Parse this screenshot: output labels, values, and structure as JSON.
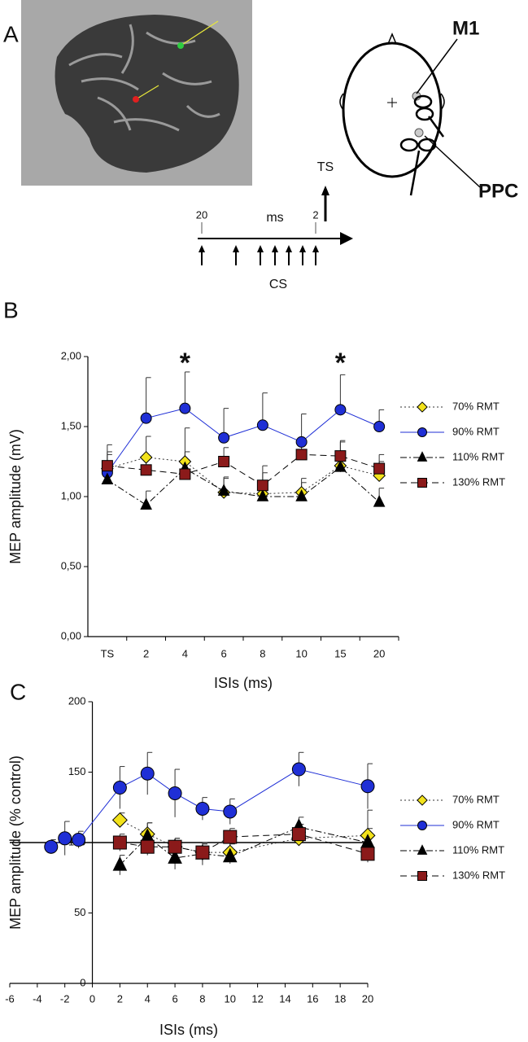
{
  "panel_labels": [
    "A",
    "B",
    "C"
  ],
  "schematic": {
    "m1": "M1",
    "ppc": "PPC",
    "ts": "TS",
    "cs": "CS",
    "ms": "ms",
    "tick_first": "20",
    "tick_last": "2"
  },
  "chart_data": [
    {
      "type": "line",
      "xlabel": "ISIs (ms)",
      "ylabel": "MEP amplitude (mV)",
      "categories": [
        "TS",
        "2",
        "4",
        "6",
        "8",
        "10",
        "15",
        "20"
      ],
      "ylim": [
        0,
        2
      ],
      "yticks": [
        {
          "value": 0,
          "label": "0,00"
        },
        {
          "value": 0.5,
          "label": "0,50"
        },
        {
          "value": 1,
          "label": "1,00"
        },
        {
          "value": 1.5,
          "label": "1,50"
        },
        {
          "value": 2,
          "label": "2,00"
        }
      ],
      "error_bars": "up",
      "annotations": [
        {
          "text": "*",
          "category": "4"
        },
        {
          "text": "*",
          "category": "15"
        }
      ],
      "series": [
        {
          "name": "70% RMT",
          "color": "#f2e21b",
          "line_color": "#333333",
          "marker": "diamond",
          "line_style": "dotted",
          "values": [
            1.2,
            1.28,
            1.25,
            1.03,
            1.02,
            1.03,
            1.22,
            1.15
          ],
          "errors": [
            0.1,
            0.15,
            0.24,
            0.1,
            0.15,
            0.1,
            0.18,
            0.1
          ]
        },
        {
          "name": "90% RMT",
          "color": "#1f2fd6",
          "line_color": "#1f2fd6",
          "marker": "circle",
          "line_style": "solid",
          "values": [
            1.17,
            1.56,
            1.63,
            1.42,
            1.51,
            1.39,
            1.62,
            1.5
          ],
          "errors": [
            0.15,
            0.29,
            0.26,
            0.21,
            0.23,
            0.2,
            0.25,
            0.12
          ]
        },
        {
          "name": "110% RMT",
          "color": "#000000",
          "line_color": "#000000",
          "marker": "triangle",
          "line_style": "dashdot",
          "values": [
            1.12,
            0.94,
            1.2,
            1.04,
            1.0,
            1.0,
            1.21,
            0.96
          ],
          "errors": [
            0.1,
            0.1,
            0.12,
            0.1,
            0.1,
            0.1,
            0.1,
            0.1
          ]
        },
        {
          "name": "130% RMT",
          "color": "#8b1a1a",
          "line_color": "#000000",
          "marker": "square",
          "line_style": "dashed",
          "values": [
            1.22,
            1.19,
            1.16,
            1.25,
            1.08,
            1.3,
            1.29,
            1.2
          ],
          "errors": [
            0.15,
            0.1,
            0.1,
            0.1,
            0.14,
            0.1,
            0.1,
            0.1
          ]
        }
      ]
    },
    {
      "type": "line",
      "xlabel": "ISIs (ms)",
      "ylabel": "MEP amplitude (% control)",
      "xlim": [
        -6,
        20
      ],
      "xticks": [
        -6,
        -4,
        -2,
        0,
        2,
        4,
        6,
        8,
        10,
        12,
        14,
        16,
        18,
        20
      ],
      "ylim": [
        0,
        200
      ],
      "yticks": [
        0,
        50,
        100,
        150,
        200
      ],
      "reference_line": 100,
      "error_bars": "both",
      "series": [
        {
          "name": "70% RMT",
          "color": "#f2e21b",
          "line_color": "#333333",
          "marker": "diamond",
          "line_style": "dotted",
          "x": [
            2,
            4,
            6,
            8,
            10,
            15,
            20
          ],
          "values": [
            116,
            106,
            97,
            93,
            93,
            103,
            105
          ],
          "errors": [
            5,
            8,
            6,
            6,
            6,
            5,
            18
          ]
        },
        {
          "name": "90% RMT",
          "color": "#1f2fd6",
          "line_color": "#1f2fd6",
          "marker": "circle",
          "line_style": "solid",
          "x": [
            -3,
            -2,
            -1,
            2,
            4,
            6,
            8,
            10,
            15,
            20
          ],
          "values": [
            97,
            103,
            102,
            139,
            149,
            135,
            124,
            122,
            152,
            140
          ],
          "errors": [
            5,
            12,
            6,
            15,
            15,
            17,
            8,
            9,
            12,
            16
          ]
        },
        {
          "name": "110% RMT",
          "color": "#000000",
          "line_color": "#000000",
          "marker": "triangle",
          "line_style": "dashdot",
          "x": [
            2,
            4,
            6,
            8,
            10,
            15,
            20
          ],
          "values": [
            84,
            104,
            89,
            92,
            90,
            111,
            100
          ],
          "errors": [
            7,
            10,
            8,
            8,
            5,
            7,
            10
          ]
        },
        {
          "name": "130% RMT",
          "color": "#8b1a1a",
          "line_color": "#000000",
          "marker": "square",
          "line_style": "dashed",
          "x": [
            2,
            4,
            6,
            8,
            10,
            15,
            20
          ],
          "values": [
            100,
            97,
            97,
            93,
            104,
            106,
            92
          ],
          "errors": [
            6,
            6,
            6,
            6,
            6,
            7,
            6
          ]
        }
      ]
    }
  ]
}
